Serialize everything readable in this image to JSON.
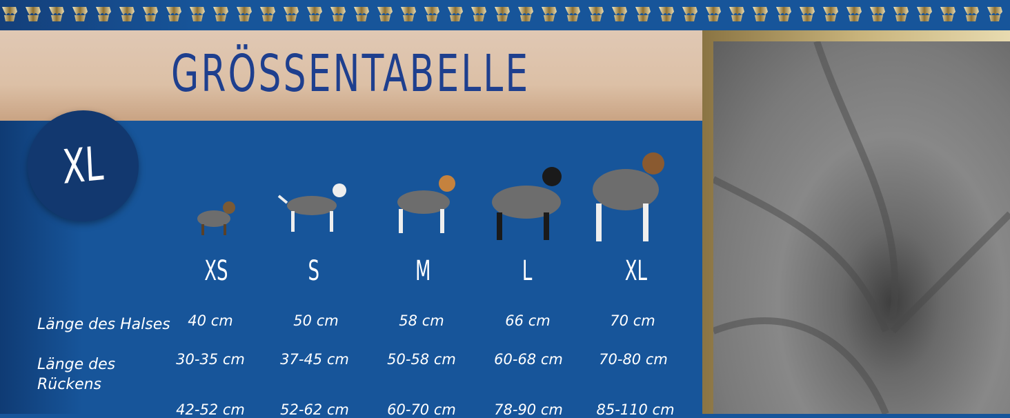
{
  "title": "GRÖSSENTABELLE",
  "selected_size": "XL",
  "sizes": [
    "XS",
    "S",
    "M",
    "L",
    "XL"
  ],
  "rows": [
    {
      "label": "Länge des Halses",
      "values": [
        "40 cm",
        "50 cm",
        "58 cm",
        "66 cm",
        "70 cm"
      ]
    },
    {
      "label_line1": "Länge des",
      "label_line2": "Rückens",
      "values": [
        "30-35 cm",
        "37-45 cm",
        "50-58 cm",
        "60-68 cm",
        "70-80 cm"
      ]
    },
    {
      "values": [
        "42-52 cm",
        "52-62 cm",
        "60-70 cm",
        "78-90 cm",
        "85-110 cm"
      ]
    }
  ],
  "colors": {
    "blue": "#17559a",
    "title_blue": "#1e3f8e",
    "gold": "#c7b27a",
    "towel_gray": "#7a7a7a"
  }
}
